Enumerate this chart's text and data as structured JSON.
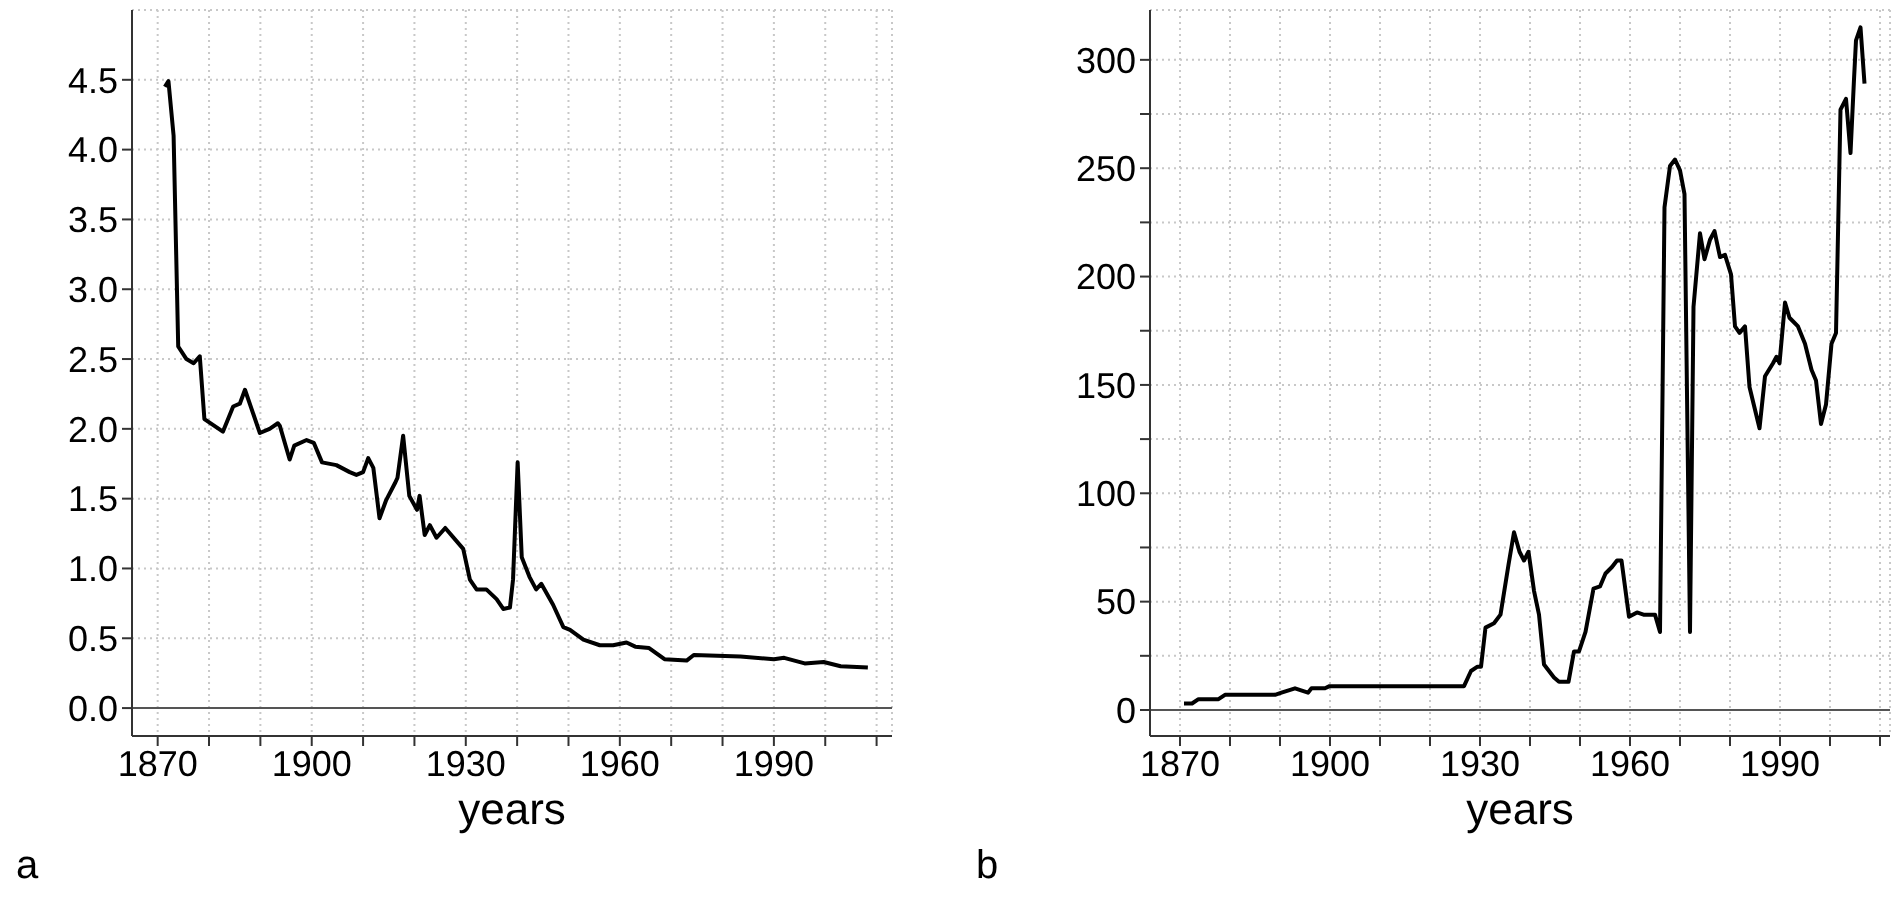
{
  "chart_data": [
    {
      "type": "line",
      "xlabel": "years",
      "annotations": [
        "a"
      ],
      "x": [
        1871.4,
        1872.1,
        1873.1,
        1874,
        1875.6,
        1877,
        1878.2,
        1879.1,
        1882.7,
        1884.7,
        1886,
        1887,
        1889.9,
        1891.8,
        1893.4,
        1893.8,
        1895.7,
        1896.6,
        1899,
        1900.4,
        1902,
        1904.8,
        1907.4,
        1908.7,
        1910,
        1911,
        1912,
        1913.2,
        1914.5,
        1916.2,
        1916.7,
        1917.8,
        1919,
        1920.5,
        1921,
        1922,
        1923,
        1924.3,
        1926,
        1929.5,
        1930.8,
        1932.1,
        1934,
        1936,
        1937.3,
        1938.6,
        1939.2,
        1940.1,
        1940.9,
        1942.4,
        1943.7,
        1944.7,
        1947,
        1949,
        1950.3,
        1952.9,
        1956.1,
        1958.7,
        1961.3,
        1963,
        1965.7,
        1968.7,
        1973,
        1974.4,
        1983.5,
        1990,
        1992,
        1996,
        1999.7,
        2003,
        2008.3
      ],
      "series": [
        {
          "color": "#000000",
          "values": [
            4.45,
            4.49,
            4.1,
            2.59,
            2.5,
            2.47,
            2.52,
            2.07,
            1.98,
            2.16,
            2.18,
            2.28,
            1.97,
            2.0,
            2.04,
            2.02,
            1.78,
            1.88,
            1.92,
            1.9,
            1.76,
            1.74,
            1.69,
            1.67,
            1.69,
            1.79,
            1.72,
            1.36,
            1.49,
            1.61,
            1.65,
            1.95,
            1.52,
            1.42,
            1.52,
            1.24,
            1.31,
            1.22,
            1.29,
            1.14,
            0.92,
            0.85,
            0.85,
            0.78,
            0.71,
            0.72,
            0.92,
            1.76,
            1.08,
            0.94,
            0.85,
            0.89,
            0.74,
            0.58,
            0.56,
            0.49,
            0.45,
            0.45,
            0.47,
            0.44,
            0.43,
            0.35,
            0.34,
            0.38,
            0.37,
            0.35,
            0.36,
            0.32,
            0.33,
            0.3,
            0.29
          ]
        }
      ],
      "xlim": [
        1865,
        2013
      ],
      "xticks": [
        1870,
        {
          "value": 1880,
          "label": null
        },
        {
          "value": 1890,
          "label": null
        },
        1900,
        {
          "value": 1910,
          "label": null
        },
        {
          "value": 1920,
          "label": null
        },
        1930,
        {
          "value": 1940,
          "label": null
        },
        {
          "value": 1950,
          "label": null
        },
        1960,
        {
          "value": 1970,
          "label": null
        },
        {
          "value": 1980,
          "label": null
        },
        1990,
        {
          "value": 2000,
          "label": null
        },
        {
          "value": 2010,
          "label": null
        }
      ],
      "ylim": [
        -0.2,
        5.0
      ],
      "yticks": [
        {
          "value": 0,
          "label": "0.0"
        },
        0.5,
        {
          "value": 1,
          "label": "1.0"
        },
        1.5,
        {
          "value": 2,
          "label": "2.0"
        },
        2.5,
        {
          "value": 3,
          "label": "3.0"
        },
        3.5,
        {
          "value": 4,
          "label": "4.0"
        },
        4.5
      ],
      "ref_lines": [
        {
          "axis": "y",
          "value": 0,
          "color": "#555555"
        }
      ],
      "grid": true,
      "marker": "none",
      "line_style": "solid",
      "legend": false
    },
    {
      "type": "line",
      "xlabel": "years",
      "annotations": [
        "b"
      ],
      "x": [
        1870.8,
        1872.4,
        1873.7,
        1877.7,
        1879,
        1889,
        1890.3,
        1893,
        1895.6,
        1896.3,
        1899,
        1899.9,
        1926.8,
        1928.2,
        1929.5,
        1930.2,
        1931.1,
        1932.8,
        1934.1,
        1935.7,
        1936.8,
        1937.9,
        1938.8,
        1939.7,
        1940.8,
        1941.8,
        1942.8,
        1944.8,
        1945.8,
        1947.7,
        1948.8,
        1949.8,
        1951.1,
        1952.7,
        1954,
        1955.1,
        1956.4,
        1957.4,
        1958.3,
        1959.8,
        1961.4,
        1962.7,
        1965,
        1966,
        1966.9,
        1968,
        1969,
        1970,
        1970.9,
        1972,
        1972.7,
        1974,
        1974.9,
        1976,
        1976.9,
        1978,
        1979,
        1980.2,
        1981,
        1981.9,
        1983,
        1983.9,
        1985.9,
        1987,
        1988.6,
        1989.3,
        1989.9,
        1991,
        1991.9,
        1993.6,
        1995,
        1996.3,
        1997.2,
        1998.2,
        1999.2,
        2000.3,
        2001.2,
        2002.1,
        2003.2,
        2004.1,
        2004.8,
        2005.2,
        2006.1,
        2006.9
      ],
      "series": [
        {
          "color": "#000000",
          "values": [
            3,
            3,
            5,
            5,
            7,
            7,
            8,
            10,
            8,
            10,
            10,
            11,
            11,
            18,
            20,
            20,
            38,
            40,
            44,
            67,
            82,
            73,
            69,
            73,
            55,
            44,
            21,
            15,
            13,
            13,
            27,
            27,
            36,
            56,
            57,
            63,
            66,
            69,
            69,
            43,
            45,
            44,
            44,
            36,
            232,
            251,
            254,
            249,
            238,
            36,
            186,
            220,
            208,
            217,
            221,
            209,
            210,
            201,
            177,
            174,
            177,
            149,
            130,
            154,
            160,
            163,
            160,
            188,
            181,
            177,
            169,
            157,
            152,
            132,
            141,
            169,
            174,
            277,
            282,
            257,
            291,
            309,
            315,
            289
          ]
        }
      ],
      "xlim": [
        1864,
        2012
      ],
      "xticks": [
        1870,
        {
          "value": 1880,
          "label": null
        },
        {
          "value": 1890,
          "label": null
        },
        1900,
        {
          "value": 1910,
          "label": null
        },
        {
          "value": 1920,
          "label": null
        },
        1930,
        {
          "value": 1940,
          "label": null
        },
        {
          "value": 1950,
          "label": null
        },
        1960,
        {
          "value": 1970,
          "label": null
        },
        {
          "value": 1980,
          "label": null
        },
        1990,
        {
          "value": 2000,
          "label": null
        },
        {
          "value": 2010,
          "label": null
        }
      ],
      "ylim": [
        -12,
        323
      ],
      "yticks": [
        0,
        {
          "value": 25,
          "label": null
        },
        50,
        {
          "value": 75,
          "label": null
        },
        100,
        {
          "value": 125,
          "label": null
        },
        150,
        {
          "value": 175,
          "label": null
        },
        200,
        {
          "value": 225,
          "label": null
        },
        250,
        {
          "value": 275,
          "label": null
        },
        300
      ],
      "ref_lines": [
        {
          "axis": "y",
          "value": 0,
          "color": "#555555"
        }
      ],
      "grid": true,
      "marker": "none",
      "line_style": "solid",
      "legend": false
    }
  ]
}
